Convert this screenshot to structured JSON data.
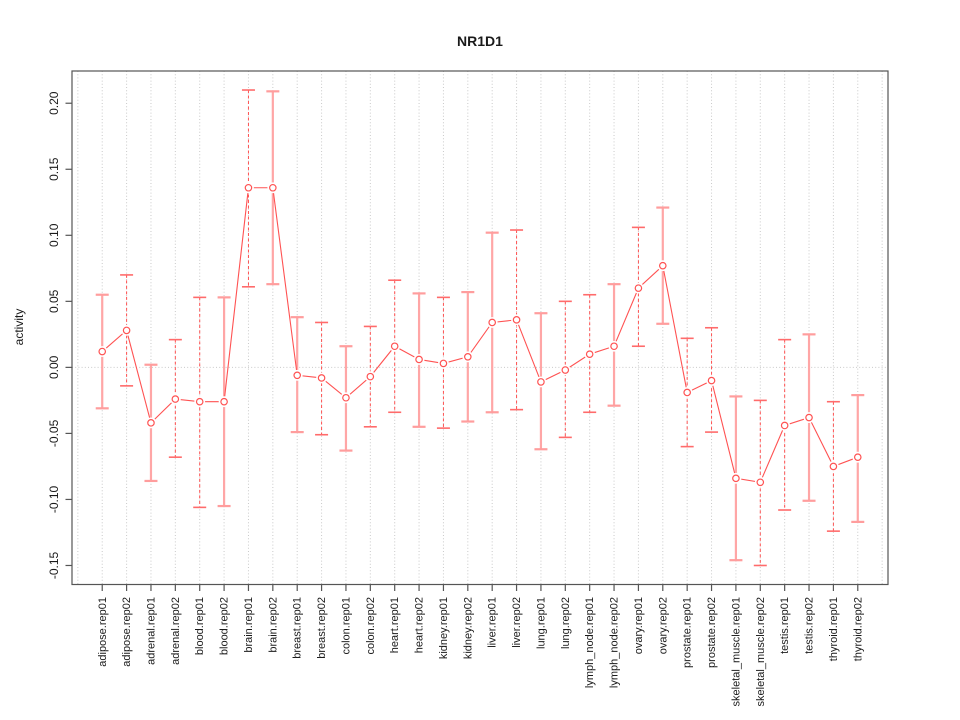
{
  "chart_data": {
    "type": "line",
    "title": "NR1D1",
    "ylabel": "activity",
    "xlabel": "",
    "legend": "none",
    "grid": "vertical dotted line at every category plus dotted horizontal line at y=0",
    "categories": [
      "adipose.rep01",
      "adipose.rep02",
      "adrenal.rep01",
      "adrenal.rep02",
      "blood.rep01",
      "blood.rep02",
      "brain.rep01",
      "brain.rep02",
      "breast.rep01",
      "breast.rep02",
      "colon.rep01",
      "colon.rep02",
      "heart.rep01",
      "heart.rep02",
      "kidney.rep01",
      "kidney.rep02",
      "liver.rep01",
      "liver.rep02",
      "lung.rep01",
      "lung.rep02",
      "lymph_node.rep01",
      "lymph_node.rep02",
      "ovary.rep01",
      "ovary.rep02",
      "prostate.rep01",
      "prostate.rep02",
      "skeletal_muscle.rep01",
      "skeletal_muscle.rep02",
      "testis.rep01",
      "testis.rep02",
      "thyroid.rep01",
      "thyroid.rep02"
    ],
    "series": [
      {
        "name": "activity",
        "marker": "open-circle",
        "values": [
          0.012,
          0.028,
          -0.042,
          -0.024,
          -0.026,
          -0.026,
          0.136,
          0.136,
          -0.006,
          -0.008,
          -0.023,
          -0.007,
          0.016,
          0.006,
          0.003,
          0.008,
          0.034,
          0.036,
          -0.011,
          -0.002,
          0.01,
          0.016,
          0.06,
          0.077,
          -0.019,
          -0.01,
          -0.084,
          -0.087,
          -0.044,
          -0.038,
          -0.075,
          -0.068
        ],
        "err_low": [
          -0.031,
          -0.014,
          -0.086,
          -0.068,
          -0.106,
          -0.105,
          0.061,
          0.063,
          -0.049,
          -0.051,
          -0.063,
          -0.045,
          -0.034,
          -0.045,
          -0.046,
          -0.041,
          -0.034,
          -0.032,
          -0.062,
          -0.053,
          -0.034,
          -0.029,
          0.016,
          0.033,
          -0.06,
          -0.049,
          -0.146,
          -0.15,
          -0.108,
          -0.101,
          -0.124,
          -0.117
        ],
        "err_high": [
          0.055,
          0.07,
          0.002,
          0.021,
          0.053,
          0.053,
          0.21,
          0.209,
          0.038,
          0.034,
          0.016,
          0.031,
          0.066,
          0.056,
          0.053,
          0.057,
          0.102,
          0.104,
          0.041,
          0.05,
          0.055,
          0.063,
          0.106,
          0.121,
          0.022,
          0.03,
          -0.022,
          -0.025,
          0.021,
          0.025,
          -0.026,
          -0.021
        ],
        "bar_styles": [
          "solid",
          "dashed",
          "solid",
          "dashed",
          "dashed",
          "solid",
          "dashed",
          "solid",
          "solid",
          "dashed",
          "solid",
          "dashed",
          "dashed",
          "solid",
          "dashed",
          "solid",
          "solid",
          "dashed",
          "solid",
          "dashed",
          "dashed",
          "solid",
          "dashed",
          "solid",
          "dashed",
          "dashed",
          "solid",
          "dashed",
          "dashed",
          "solid",
          "dashed",
          "solid"
        ]
      }
    ],
    "yticks": [
      -0.15,
      -0.1,
      -0.05,
      0.0,
      0.05,
      0.1,
      0.15,
      0.2
    ],
    "ytick_labels": [
      "-0.15",
      "-0.10",
      "-0.05",
      "0.00",
      "0.05",
      "0.10",
      "0.15",
      "0.20"
    ],
    "ylim": [
      -0.1644,
      0.2244
    ],
    "colors": {
      "series_red": "#ff5252",
      "error_bar_light": "#ffa6a6",
      "error_cap_light": "#ff9d9d",
      "error_cap_dark": "#ff6b6b",
      "grid": "#c9c9c9",
      "axis_frame": "#555555",
      "text": "#1a1a1a"
    }
  }
}
